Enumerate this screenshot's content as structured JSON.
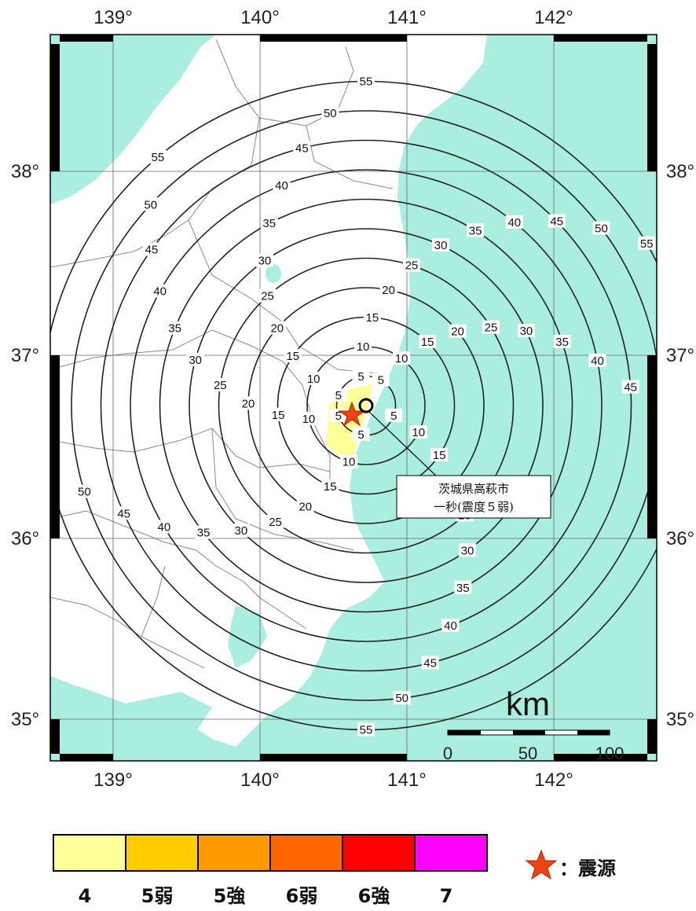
{
  "map": {
    "longitude_ticks": [
      "139°",
      "140°",
      "141°",
      "142°"
    ],
    "latitude_ticks": [
      "38°",
      "37°",
      "36°",
      "35°"
    ],
    "contour_labels": [
      "5",
      "10",
      "15",
      "20",
      "25",
      "30",
      "35",
      "40",
      "45",
      "50",
      "55"
    ],
    "colors": {
      "sea": "#aaeee0",
      "land": "#ffffff",
      "frame": "#000000",
      "contour": "#222222",
      "border": "#888888",
      "epicenter": "#ee4411",
      "intensity4_area": "#ffff99"
    }
  },
  "callout": {
    "line1": "茨城県高萩市",
    "line2": "一秒(震度５弱)"
  },
  "scale": {
    "unit": "km",
    "ticks": [
      "0",
      "50",
      "100"
    ]
  },
  "legend": {
    "items": [
      {
        "label": "4",
        "color": "#ffff99"
      },
      {
        "label": "5弱",
        "color": "#ffcc00"
      },
      {
        "label": "5強",
        "color": "#ff9900"
      },
      {
        "label": "6弱",
        "color": "#ff6600"
      },
      {
        "label": "6強",
        "color": "#ff0000"
      },
      {
        "label": "7",
        "color": "#ff00ff"
      }
    ],
    "epicenter_label": "：震源",
    "epicenter_icon": "star-icon"
  }
}
